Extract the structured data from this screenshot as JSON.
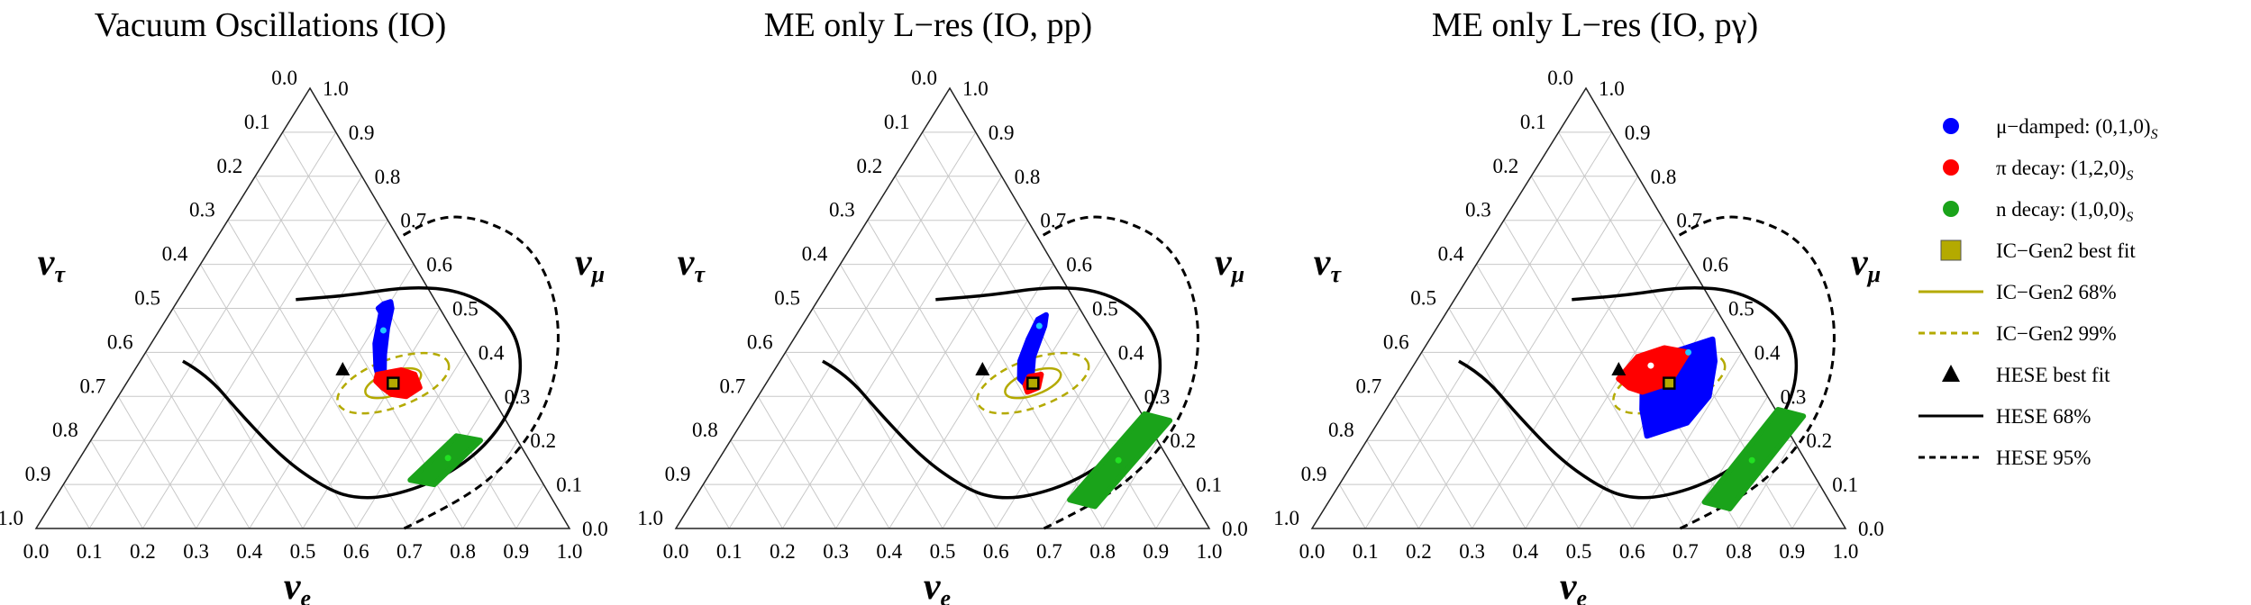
{
  "chart_data": [
    {
      "type": "scatter",
      "subtype": "ternary",
      "title": "Vacuum Oscillations (IO)",
      "axes": {
        "bottom": "ν_e",
        "right": "ν_μ",
        "left": "ν_τ"
      },
      "ticks": [
        "0.0",
        "0.1",
        "0.2",
        "0.3",
        "0.4",
        "0.5",
        "0.6",
        "0.7",
        "0.8",
        "0.9",
        "1.0"
      ],
      "grid": true,
      "series": [
        {
          "name": "μ−damped: (0,1,0)_S",
          "color": "#0000ff",
          "kind": "region",
          "outline": [
            [
              0.385,
              0.5
            ],
            [
              0.395,
              0.49
            ],
            [
              0.42,
              0.42
            ],
            [
              0.45,
              0.365
            ],
            [
              0.468,
              0.34
            ],
            [
              0.475,
              0.345
            ],
            [
              0.45,
              0.395
            ],
            [
              0.425,
              0.455
            ],
            [
              0.41,
              0.5
            ],
            [
              0.4,
              0.515
            ],
            [
              0.39,
              0.51
            ]
          ]
        },
        {
          "name": "π decay: (1,2,0)_S",
          "color": "#ff0000",
          "kind": "region",
          "outline": [
            [
              0.46,
              0.35
            ],
            [
              0.5,
              0.36
            ],
            [
              0.53,
              0.35
            ],
            [
              0.555,
              0.32
            ],
            [
              0.54,
              0.3
            ],
            [
              0.51,
              0.305
            ],
            [
              0.485,
              0.32
            ],
            [
              0.465,
              0.335
            ]
          ]
        },
        {
          "name": "n decay: (1,0,0)_S",
          "color": "#1aa31a",
          "kind": "region",
          "outline": [
            [
              0.68,
              0.21
            ],
            [
              0.73,
              0.2
            ],
            [
              0.695,
              0.1
            ],
            [
              0.645,
              0.11
            ]
          ]
        }
      ],
      "best_fit_points": [
        {
          "name": "IC−Gen2 best fit",
          "marker": "square",
          "color": "#b4aa00",
          "e": 0.5,
          "mu": 0.33
        },
        {
          "name": "HESE best fit",
          "marker": "triangle",
          "color": "#000000",
          "e": 0.39,
          "mu": 0.36
        }
      ],
      "source_points": [
        {
          "color": "#22c8ff",
          "e": 0.42,
          "mu": 0.45
        },
        {
          "color": "#ffffff",
          "e": 0.5,
          "mu": 0.33
        },
        {
          "color": "#22e022",
          "e": 0.69,
          "mu": 0.16
        }
      ],
      "contours": [
        {
          "name": "IC−Gen2 68%",
          "color": "#b4aa00",
          "style": "solid",
          "center": [
            0.5,
            0.33
          ],
          "a": 0.055,
          "b": 0.022,
          "angle_deg": 20
        },
        {
          "name": "IC−Gen2 99%",
          "color": "#b4aa00",
          "style": "dashed",
          "center": [
            0.5,
            0.33
          ],
          "a": 0.11,
          "b": 0.045,
          "angle_deg": 20
        },
        {
          "name": "HESE 68%",
          "color": "#000000",
          "style": "solid",
          "points": [
            [
              0.08,
              0.38
            ],
            [
              0.14,
              0.35
            ],
            [
              0.25,
              0.26
            ],
            [
              0.38,
              0.16
            ],
            [
              0.48,
              0.1
            ],
            [
              0.55,
              0.07
            ],
            [
              0.62,
              0.07
            ],
            [
              0.7,
              0.11
            ],
            [
              0.75,
              0.19
            ],
            [
              0.75,
              0.3
            ],
            [
              0.7,
              0.41
            ],
            [
              0.62,
              0.49
            ],
            [
              0.52,
              0.54
            ],
            [
              0.42,
              0.55
            ],
            [
              0.32,
              0.53
            ],
            [
              0.22,
              0.52
            ]
          ]
        },
        {
          "name": "HESE 95%",
          "color": "#000000",
          "style": "dashed",
          "points": [
            [
              0.69,
              0.0
            ],
            [
              0.75,
              0.05
            ],
            [
              0.8,
              0.12
            ],
            [
              0.82,
              0.22
            ],
            [
              0.8,
              0.34
            ],
            [
              0.74,
              0.47
            ],
            [
              0.66,
              0.58
            ],
            [
              0.57,
              0.66
            ],
            [
              0.48,
              0.7
            ],
            [
              0.42,
              0.71
            ],
            [
              0.38,
              0.7
            ],
            [
              0.34,
              0.66
            ]
          ]
        }
      ]
    },
    {
      "type": "scatter",
      "subtype": "ternary",
      "title": "ME only L−res (IO, pp)",
      "axes": {
        "bottom": "ν_e",
        "right": "ν_μ",
        "left": "ν_τ"
      },
      "ticks": [
        "0.0",
        "0.1",
        "0.2",
        "0.3",
        "0.4",
        "0.5",
        "0.6",
        "0.7",
        "0.8",
        "0.9",
        "1.0"
      ],
      "grid": true,
      "series": [
        {
          "name": "μ−damped: (0,1,0)_S",
          "color": "#0000ff",
          "kind": "region",
          "outline": [
            [
              0.435,
              0.475
            ],
            [
              0.445,
              0.485
            ],
            [
              0.455,
              0.46
            ],
            [
              0.47,
              0.39
            ],
            [
              0.49,
              0.345
            ],
            [
              0.5,
              0.33
            ],
            [
              0.49,
              0.325
            ],
            [
              0.47,
              0.34
            ],
            [
              0.45,
              0.38
            ],
            [
              0.44,
              0.43
            ]
          ]
        },
        {
          "name": "π decay: (1,2,0)_S",
          "color": "#ff0000",
          "kind": "region",
          "outline": [
            [
              0.485,
              0.345
            ],
            [
              0.505,
              0.35
            ],
            [
              0.515,
              0.32
            ],
            [
              0.5,
              0.31
            ],
            [
              0.488,
              0.325
            ]
          ]
        },
        {
          "name": "n decay: (1,0,0)_S",
          "color": "#1aa31a",
          "kind": "region",
          "outline": [
            [
              0.745,
              0.26
            ],
            [
              0.8,
              0.245
            ],
            [
              0.76,
              0.05
            ],
            [
              0.705,
              0.065
            ]
          ]
        }
      ],
      "best_fit_points": [
        {
          "name": "IC−Gen2 best fit",
          "marker": "square",
          "color": "#b4aa00",
          "e": 0.5,
          "mu": 0.33
        },
        {
          "name": "HESE best fit",
          "marker": "triangle",
          "color": "#000000",
          "e": 0.39,
          "mu": 0.36
        }
      ],
      "source_points": [
        {
          "color": "#22c8ff",
          "e": 0.445,
          "mu": 0.46
        },
        {
          "color": "#ffffff",
          "e": 0.5,
          "mu": 0.33
        },
        {
          "color": "#22e022",
          "e": 0.75,
          "mu": 0.155
        }
      ],
      "contours": [
        {
          "name": "IC−Gen2 68%",
          "color": "#b4aa00",
          "style": "solid",
          "center": [
            0.5,
            0.33
          ],
          "a": 0.055,
          "b": 0.022,
          "angle_deg": 20
        },
        {
          "name": "IC−Gen2 99%",
          "color": "#b4aa00",
          "style": "dashed",
          "center": [
            0.5,
            0.33
          ],
          "a": 0.11,
          "b": 0.045,
          "angle_deg": 20
        },
        {
          "name": "HESE 68%",
          "color": "#000000",
          "style": "solid",
          "points": [
            [
              0.08,
              0.38
            ],
            [
              0.14,
              0.35
            ],
            [
              0.25,
              0.26
            ],
            [
              0.38,
              0.16
            ],
            [
              0.48,
              0.1
            ],
            [
              0.55,
              0.07
            ],
            [
              0.62,
              0.07
            ],
            [
              0.7,
              0.11
            ],
            [
              0.75,
              0.19
            ],
            [
              0.75,
              0.3
            ],
            [
              0.7,
              0.41
            ],
            [
              0.62,
              0.49
            ],
            [
              0.52,
              0.54
            ],
            [
              0.42,
              0.55
            ],
            [
              0.32,
              0.53
            ],
            [
              0.22,
              0.52
            ]
          ]
        },
        {
          "name": "HESE 95%",
          "color": "#000000",
          "style": "dashed",
          "points": [
            [
              0.69,
              0.0
            ],
            [
              0.75,
              0.05
            ],
            [
              0.8,
              0.12
            ],
            [
              0.82,
              0.22
            ],
            [
              0.8,
              0.34
            ],
            [
              0.74,
              0.47
            ],
            [
              0.66,
              0.58
            ],
            [
              0.57,
              0.66
            ],
            [
              0.48,
              0.7
            ],
            [
              0.42,
              0.71
            ],
            [
              0.38,
              0.7
            ],
            [
              0.34,
              0.66
            ]
          ]
        }
      ]
    },
    {
      "type": "scatter",
      "subtype": "ternary",
      "title": "ME only L−res (IO, pγ)",
      "axes": {
        "bottom": "ν_e",
        "right": "ν_μ",
        "left": "ν_τ"
      },
      "ticks": [
        "0.0",
        "0.1",
        "0.2",
        "0.3",
        "0.4",
        "0.5",
        "0.6",
        "0.7",
        "0.8",
        "0.9",
        "1.0"
      ],
      "grid": true,
      "series": [
        {
          "name": "μ−damped: (0,1,0)_S",
          "color": "#0000ff",
          "kind": "region",
          "outline": [
            [
              0.47,
              0.4
            ],
            [
              0.53,
              0.43
            ],
            [
              0.56,
              0.38
            ],
            [
              0.59,
              0.3
            ],
            [
              0.58,
              0.24
            ],
            [
              0.52,
              0.21
            ],
            [
              0.48,
              0.27
            ],
            [
              0.45,
              0.33
            ]
          ]
        },
        {
          "name": "π decay: (1,2,0)_S",
          "color": "#ff0000",
          "kind": "region",
          "outline": [
            [
              0.41,
              0.39
            ],
            [
              0.45,
              0.41
            ],
            [
              0.5,
              0.4
            ],
            [
              0.5,
              0.33
            ],
            [
              0.46,
              0.31
            ],
            [
              0.43,
              0.32
            ],
            [
              0.4,
              0.34
            ]
          ]
        },
        {
          "name": "n decay: (1,0,0)_S",
          "color": "#1aa31a",
          "kind": "region",
          "outline": [
            [
              0.735,
              0.27
            ],
            [
              0.79,
              0.255
            ],
            [
              0.76,
              0.045
            ],
            [
              0.705,
              0.06
            ]
          ]
        }
      ],
      "best_fit_points": [
        {
          "name": "IC−Gen2 best fit",
          "marker": "square",
          "color": "#b4aa00",
          "e": 0.5,
          "mu": 0.33
        },
        {
          "name": "HESE best fit",
          "marker": "triangle",
          "color": "#000000",
          "e": 0.39,
          "mu": 0.36
        }
      ],
      "source_points": [
        {
          "color": "#22c8ff",
          "e": 0.5,
          "mu": 0.4
        },
        {
          "color": "#ffffff",
          "e": 0.445,
          "mu": 0.37
        },
        {
          "color": "#22e022",
          "e": 0.745,
          "mu": 0.155
        }
      ],
      "contours": [
        {
          "name": "IC−Gen2 68%",
          "color": "#b4aa00",
          "style": "solid",
          "center": [
            0.5,
            0.33
          ],
          "a": 0.055,
          "b": 0.022,
          "angle_deg": 20
        },
        {
          "name": "IC−Gen2 99%",
          "color": "#b4aa00",
          "style": "dashed",
          "center": [
            0.5,
            0.33
          ],
          "a": 0.11,
          "b": 0.045,
          "angle_deg": 20
        },
        {
          "name": "HESE 68%",
          "color": "#000000",
          "style": "solid",
          "points": [
            [
              0.08,
              0.38
            ],
            [
              0.14,
              0.35
            ],
            [
              0.25,
              0.26
            ],
            [
              0.38,
              0.16
            ],
            [
              0.48,
              0.1
            ],
            [
              0.55,
              0.07
            ],
            [
              0.62,
              0.07
            ],
            [
              0.7,
              0.11
            ],
            [
              0.75,
              0.19
            ],
            [
              0.75,
              0.3
            ],
            [
              0.7,
              0.41
            ],
            [
              0.62,
              0.49
            ],
            [
              0.52,
              0.54
            ],
            [
              0.42,
              0.55
            ],
            [
              0.32,
              0.53
            ],
            [
              0.22,
              0.52
            ]
          ]
        },
        {
          "name": "HESE 95%",
          "color": "#000000",
          "style": "dashed",
          "points": [
            [
              0.69,
              0.0
            ],
            [
              0.75,
              0.05
            ],
            [
              0.8,
              0.12
            ],
            [
              0.82,
              0.22
            ],
            [
              0.8,
              0.34
            ],
            [
              0.74,
              0.47
            ],
            [
              0.66,
              0.58
            ],
            [
              0.57,
              0.66
            ],
            [
              0.48,
              0.7
            ],
            [
              0.42,
              0.71
            ],
            [
              0.38,
              0.7
            ],
            [
              0.34,
              0.66
            ]
          ]
        }
      ]
    }
  ],
  "legend": {
    "placement": "right",
    "items": [
      {
        "label_main": "μ−damped: (0,1,0)",
        "label_sub": "S",
        "marker": "circle",
        "color": "#0000ff"
      },
      {
        "label_main": "π decay: (1,2,0)",
        "label_sub": "S",
        "marker": "circle",
        "color": "#ff0000"
      },
      {
        "label_main": "n decay: (1,0,0)",
        "label_sub": "S",
        "marker": "circle",
        "color": "#1aa31a"
      },
      {
        "label_main": "IC−Gen2 best fit",
        "label_sub": "",
        "marker": "square",
        "color": "#b4aa00"
      },
      {
        "label_main": "IC−Gen2 68%",
        "label_sub": "",
        "marker": "line-solid",
        "color": "#b4aa00"
      },
      {
        "label_main": "IC−Gen2 99%",
        "label_sub": "",
        "marker": "line-dashed",
        "color": "#b4aa00"
      },
      {
        "label_main": "HESE best fit",
        "label_sub": "",
        "marker": "triangle",
        "color": "#000000"
      },
      {
        "label_main": "HESE 68%",
        "label_sub": "",
        "marker": "line-solid",
        "color": "#000000"
      },
      {
        "label_main": "HESE 95%",
        "label_sub": "",
        "marker": "line-dashed",
        "color": "#000000"
      }
    ]
  }
}
